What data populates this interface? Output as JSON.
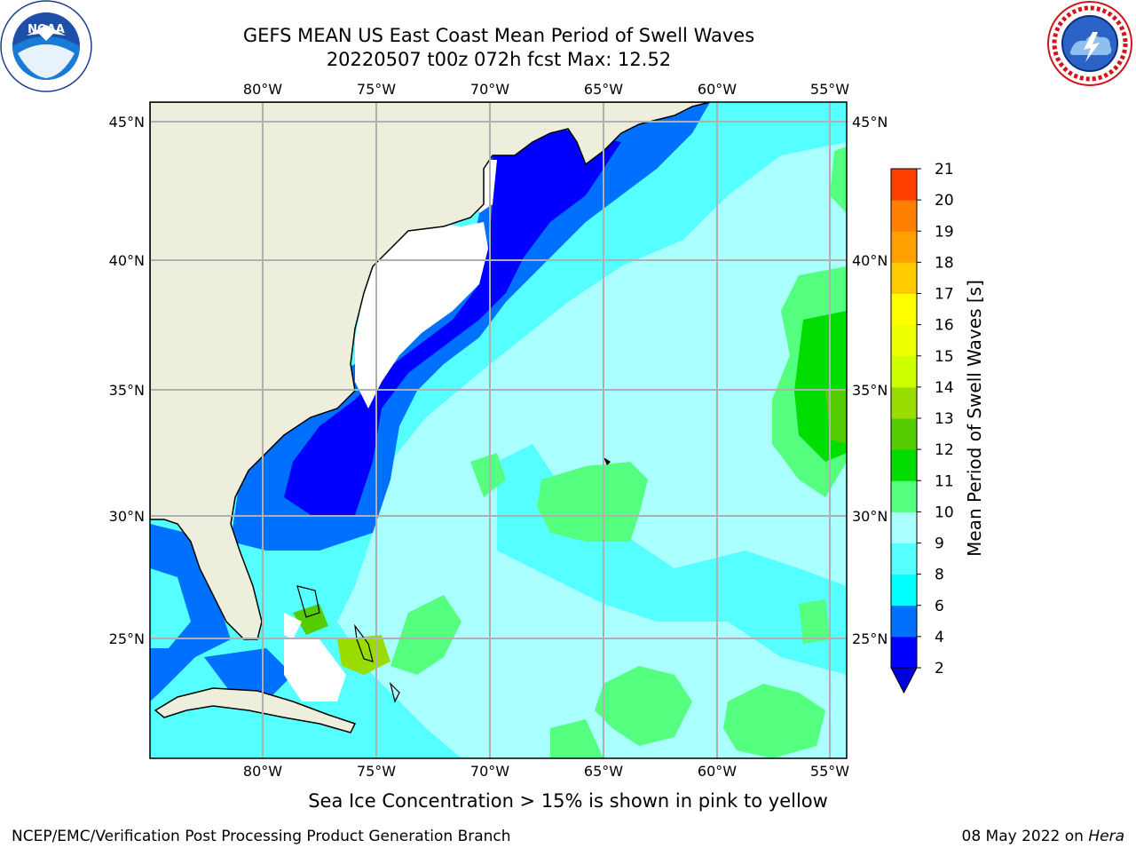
{
  "title": {
    "line1": "GEFS MEAN US East Coast Mean Period of Swell Waves",
    "line2": "20220507 t00z 072h fcst   Max: 12.52"
  },
  "logos": {
    "left": {
      "name": "noaa-logo",
      "text": "NOAA"
    },
    "right": {
      "name": "nws-logo",
      "text": "NATIONAL WEATHER SERVICE"
    }
  },
  "map": {
    "lon_ticks": [
      "80°W",
      "75°W",
      "70°W",
      "65°W",
      "60°W",
      "55°W"
    ],
    "lon_values": [
      -80,
      -75,
      -70,
      -65,
      -60,
      -55
    ],
    "lat_ticks": [
      "45°N",
      "40°N",
      "35°N",
      "30°N",
      "25°N"
    ],
    "lat_values": [
      45,
      40,
      35,
      30,
      25
    ],
    "lon_range": [
      -84.3,
      -54.6
    ],
    "lat_range": [
      20.3,
      45.8
    ]
  },
  "colorbar": {
    "title": "Mean Period of Swell Waves [s]",
    "tick_labels": [
      "2",
      "4",
      "6",
      "8",
      "9",
      "10",
      "11",
      "12",
      "13",
      "14",
      "15",
      "16",
      "17",
      "18",
      "19",
      "20",
      "21"
    ],
    "colors": [
      "#0000ff",
      "#0070ff",
      "#00ffff",
      "#55ffff",
      "#aaffff",
      "#55ff7f",
      "#00dd00",
      "#55cc00",
      "#99dd00",
      "#ccff00",
      "#eeff00",
      "#ffff00",
      "#ffcc00",
      "#ffa000",
      "#ff8000",
      "#ff4000",
      "#ff1a00",
      "#ff0000"
    ],
    "under_color": "#0000dd"
  },
  "note": "Sea Ice Concentration > 15% is shown in pink to yellow",
  "footer": {
    "left": "NCEP/EMC/Verification Post Processing Product Generation Branch",
    "right_date": "08 May 2022 on ",
    "right_host": "Hera"
  }
}
